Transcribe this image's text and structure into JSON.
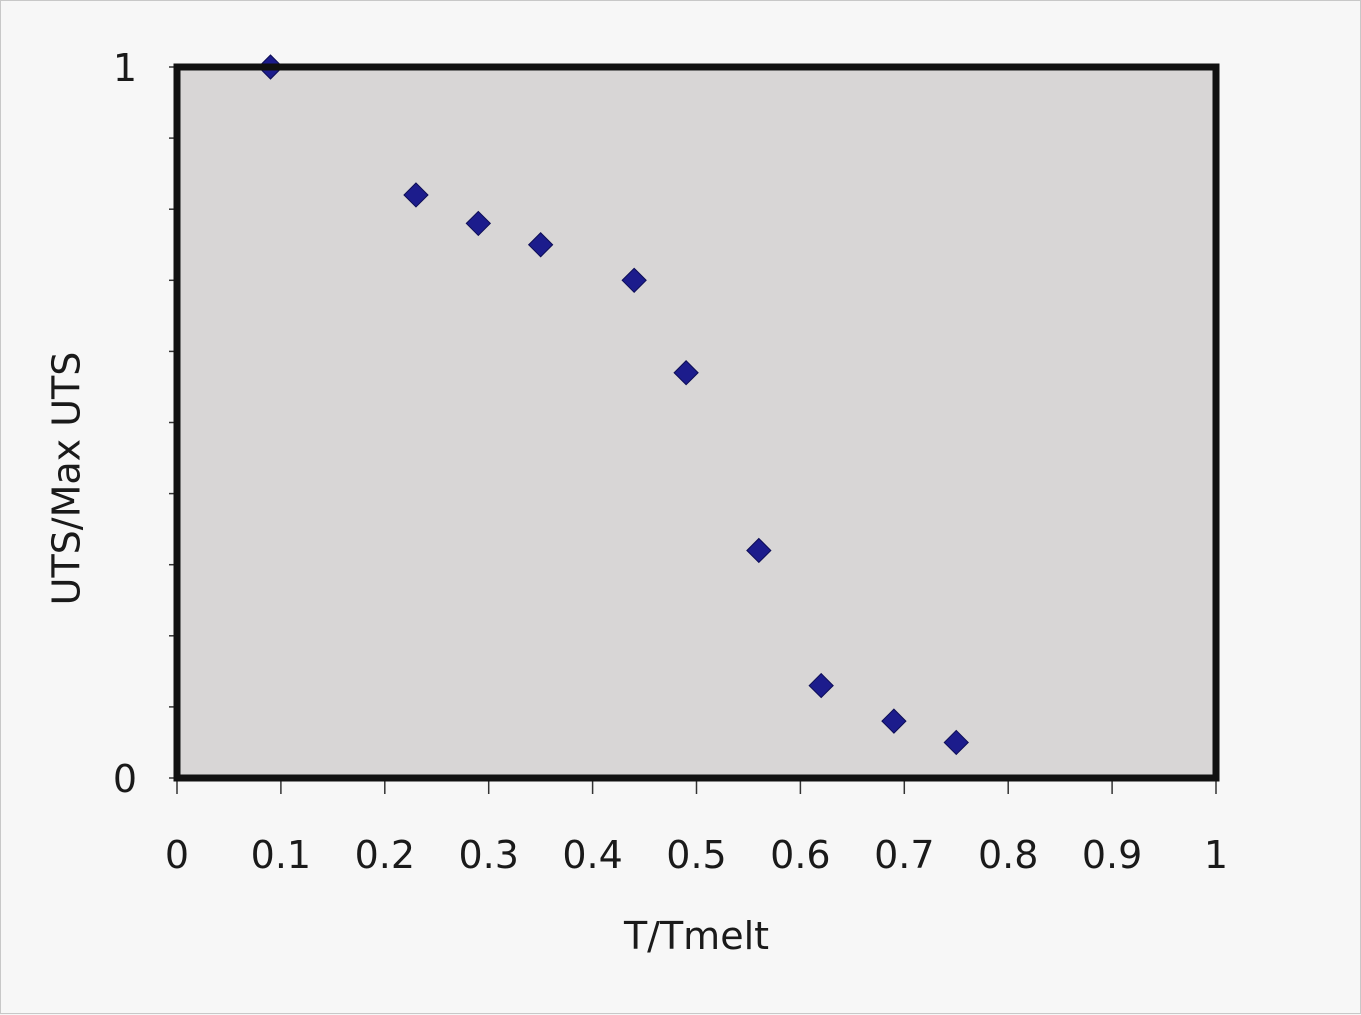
{
  "chart_data": {
    "type": "scatter",
    "title": "",
    "xlabel": "T/Tmelt",
    "ylabel": "UTS/Max UTS",
    "xlim": [
      0,
      1
    ],
    "ylim": [
      0,
      1
    ],
    "x_ticks": [
      "0",
      "0.1",
      "0.2",
      "0.3",
      "0.4",
      "0.5",
      "0.6",
      "0.7",
      "0.8",
      "0.9",
      "1"
    ],
    "y_ticks": [
      "0",
      "1"
    ],
    "grid": false,
    "legend": "none",
    "series": [
      {
        "marker": "diamond",
        "color": "#1c1c8c",
        "points": [
          {
            "x": 0.09,
            "y": 1.0
          },
          {
            "x": 0.23,
            "y": 0.82
          },
          {
            "x": 0.29,
            "y": 0.78
          },
          {
            "x": 0.35,
            "y": 0.75
          },
          {
            "x": 0.44,
            "y": 0.7
          },
          {
            "x": 0.49,
            "y": 0.57
          },
          {
            "x": 0.56,
            "y": 0.32
          },
          {
            "x": 0.62,
            "y": 0.13
          },
          {
            "x": 0.69,
            "y": 0.08
          },
          {
            "x": 0.75,
            "y": 0.05
          }
        ]
      }
    ],
    "colors": {
      "plot_background": "#d8d6d6",
      "frame": "#111111",
      "marker": "#1c1c8c"
    }
  }
}
